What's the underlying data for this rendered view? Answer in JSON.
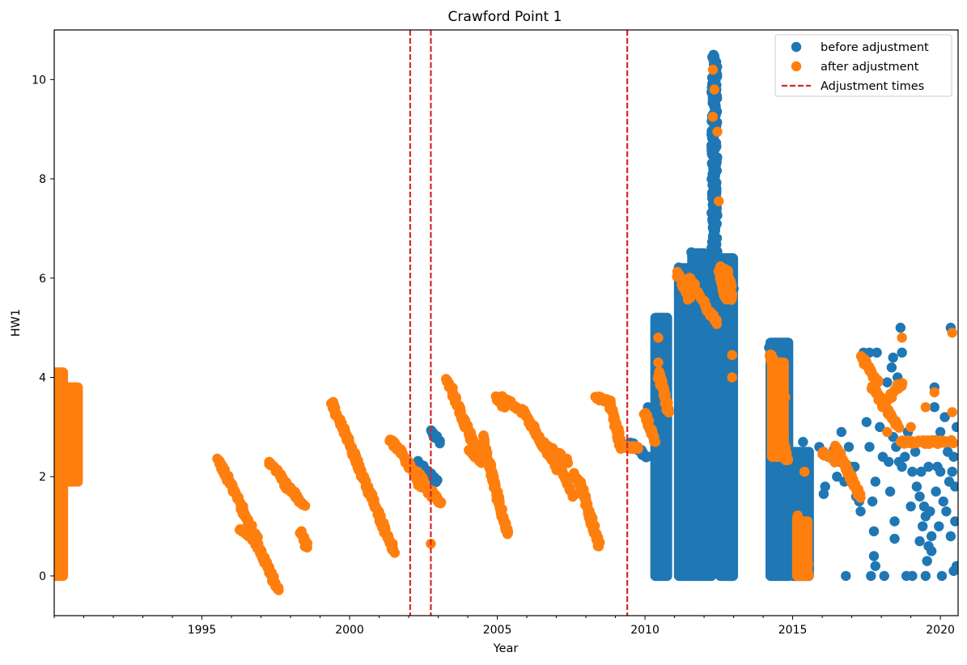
{
  "chart_data": {
    "type": "scatter",
    "title": "Crawford Point 1",
    "xlabel": "Year",
    "ylabel": "HW1",
    "xlim": [
      1990.0,
      2020.6
    ],
    "ylim": [
      -0.8,
      11.0
    ],
    "xticks": [
      1995,
      2000,
      2005,
      2010,
      2015,
      2020
    ],
    "yticks": [
      0,
      2,
      4,
      6,
      8,
      10
    ],
    "grid": false,
    "legend_position": "top-right",
    "colors": {
      "before": "#1f77b4",
      "after": "#ff7f0e",
      "adjustment": "#d62728"
    },
    "legend": [
      "before adjustment",
      "after adjustment",
      "Adjustment times"
    ],
    "adjustment_times": [
      2002.05,
      2002.75,
      2009.4
    ],
    "series": [
      {
        "name": "before adjustment",
        "segments": [
          {
            "x": [
              2002.3,
              2002.95
            ],
            "y": [
              2.3,
              1.9
            ]
          },
          {
            "x": [
              2002.75,
              2003.05
            ],
            "y": [
              2.9,
              2.7
            ]
          },
          {
            "x": [
              2009.5,
              2010.1
            ],
            "y": [
              2.7,
              2.4
            ]
          },
          {
            "x": [
              2011.2,
              2011.55
            ],
            "y": [
              6.2,
              5.5
            ]
          },
          {
            "x": [
              2011.6,
              2011.9
            ],
            "y": [
              6.5,
              6.0
            ]
          },
          {
            "x": [
              2012.1,
              2012.55
            ],
            "y": [
              6.2,
              5.6
            ]
          },
          {
            "x": [
              2012.55,
              2012.95
            ],
            "y": [
              6.3,
              5.8
            ]
          },
          {
            "x": [
              2014.3,
              2014.75
            ],
            "y": [
              4.6,
              3.5
            ]
          }
        ],
        "bars": [
          {
            "x": [
              2010.35,
              2010.75
            ],
            "y": [
              0.0,
              5.2
            ]
          },
          {
            "x": [
              2011.15,
              2011.55
            ],
            "y": [
              0.0,
              6.2
            ]
          },
          {
            "x": [
              2011.6,
              2012.0
            ],
            "y": [
              0.0,
              6.5
            ]
          },
          {
            "x": [
              2012.05,
              2012.25
            ],
            "y": [
              0.0,
              6.4
            ]
          },
          {
            "x": [
              2012.55,
              2012.98
            ],
            "y": [
              0.0,
              6.4
            ]
          },
          {
            "x": [
              2014.25,
              2014.85
            ],
            "y": [
              0.0,
              4.7
            ]
          },
          {
            "x": [
              2015.0,
              2015.55
            ],
            "y": [
              0.0,
              2.5
            ]
          }
        ],
        "spike": {
          "x": 2012.35,
          "x_spread": 0.1,
          "y": [
            6.0,
            10.5
          ]
        },
        "points": [
          [
            2010.1,
            3.4
          ],
          [
            2010.45,
            5.2
          ],
          [
            2010.4,
            4.4
          ],
          [
            2014.2,
            4.6
          ],
          [
            2015.35,
            2.7
          ],
          [
            2015.9,
            2.6
          ],
          [
            2016.05,
            2.5
          ],
          [
            2016.1,
            1.8
          ],
          [
            2016.05,
            1.65
          ],
          [
            2016.2,
            2.4
          ],
          [
            2016.4,
            2.55
          ],
          [
            2016.5,
            2.0
          ],
          [
            2016.6,
            2.3
          ],
          [
            2016.65,
            2.9
          ],
          [
            2016.75,
            1.9
          ],
          [
            2016.8,
            0.0
          ],
          [
            2016.9,
            2.6
          ],
          [
            2017.0,
            2.2
          ],
          [
            2017.1,
            2.2
          ],
          [
            2017.15,
            1.6
          ],
          [
            2017.25,
            1.5
          ],
          [
            2017.3,
            1.3
          ],
          [
            2017.4,
            4.5
          ],
          [
            2017.5,
            3.1
          ],
          [
            2017.6,
            2.6
          ],
          [
            2017.6,
            4.5
          ],
          [
            2017.65,
            0.0
          ],
          [
            2017.7,
            1.5
          ],
          [
            2017.75,
            0.4
          ],
          [
            2017.75,
            0.9
          ],
          [
            2017.8,
            0.2
          ],
          [
            2017.8,
            1.9
          ],
          [
            2017.85,
            4.5
          ],
          [
            2017.95,
            3.0
          ],
          [
            2018.05,
            2.4
          ],
          [
            2018.1,
            0.0
          ],
          [
            2018.2,
            3.9
          ],
          [
            2018.25,
            2.3
          ],
          [
            2018.3,
            1.7
          ],
          [
            2018.35,
            4.2
          ],
          [
            2018.4,
            4.4
          ],
          [
            2018.4,
            2.8
          ],
          [
            2018.45,
            1.1
          ],
          [
            2018.45,
            0.75
          ],
          [
            2018.5,
            2.6
          ],
          [
            2018.55,
            4.0
          ],
          [
            2018.6,
            2.3
          ],
          [
            2018.65,
            5.0
          ],
          [
            2018.7,
            4.5
          ],
          [
            2018.7,
            2.2
          ],
          [
            2018.8,
            2.4
          ],
          [
            2018.85,
            0.0
          ],
          [
            2018.9,
            2.9
          ],
          [
            2019.0,
            1.4
          ],
          [
            2019.05,
            2.1
          ],
          [
            2019.05,
            0.0
          ],
          [
            2019.15,
            2.5
          ],
          [
            2019.2,
            1.8
          ],
          [
            2019.3,
            1.6
          ],
          [
            2019.3,
            0.7
          ],
          [
            2019.35,
            2.1
          ],
          [
            2019.4,
            1.0
          ],
          [
            2019.45,
            1.4
          ],
          [
            2019.5,
            1.2
          ],
          [
            2019.5,
            0.0
          ],
          [
            2019.55,
            0.3
          ],
          [
            2019.6,
            0.6
          ],
          [
            2019.65,
            1.3
          ],
          [
            2019.7,
            0.5
          ],
          [
            2019.7,
            0.8
          ],
          [
            2019.8,
            3.8
          ],
          [
            2019.8,
            3.4
          ],
          [
            2019.85,
            1.7
          ],
          [
            2019.9,
            2.2
          ],
          [
            2019.95,
            1.0
          ],
          [
            2020.0,
            2.9
          ],
          [
            2020.05,
            0.0
          ],
          [
            2020.1,
            1.5
          ],
          [
            2020.15,
            3.2
          ],
          [
            2020.2,
            1.3
          ],
          [
            2020.25,
            2.5
          ],
          [
            2020.3,
            1.9
          ],
          [
            2020.35,
            0.8
          ],
          [
            2020.35,
            5.0
          ],
          [
            2020.4,
            2.1
          ],
          [
            2020.45,
            0.1
          ],
          [
            2020.45,
            2.4
          ],
          [
            2020.5,
            1.8
          ],
          [
            2020.55,
            0.2
          ],
          [
            2020.55,
            3.0
          ],
          [
            2020.5,
            1.1
          ],
          [
            2020.0,
            2.1
          ],
          [
            2019.6,
            2.2
          ]
        ]
      },
      {
        "name": "after adjustment",
        "segments": [
          {
            "x": [
              1995.55,
              1996.85
            ],
            "y": [
              2.35,
              0.75
            ]
          },
          {
            "x": [
              1996.3,
              1996.9
            ],
            "y": [
              0.95,
              0.65
            ]
          },
          {
            "x": [
              1996.85,
              1997.6
            ],
            "y": [
              0.65,
              -0.3
            ]
          },
          {
            "x": [
              1997.3,
              1998.0
            ],
            "y": [
              2.3,
              1.7
            ]
          },
          {
            "x": [
              1997.9,
              1998.45
            ],
            "y": [
              1.85,
              1.4
            ]
          },
          {
            "x": [
              1998.35,
              1998.55
            ],
            "y": [
              0.9,
              0.6
            ]
          },
          {
            "x": [
              1999.4,
              2001.5
            ],
            "y": [
              3.5,
              0.5
            ]
          },
          {
            "x": [
              2001.35,
              2001.75
            ],
            "y": [
              2.75,
              2.5
            ]
          },
          {
            "x": [
              2001.75,
              2002.4
            ],
            "y": [
              2.5,
              1.8
            ]
          },
          {
            "x": [
              2002.3,
              2002.75
            ],
            "y": [
              2.1,
              1.6
            ]
          },
          {
            "x": [
              2002.8,
              2003.1
            ],
            "y": [
              1.7,
              1.45
            ]
          },
          {
            "x": [
              2003.3,
              2004.3
            ],
            "y": [
              3.95,
              2.5
            ]
          },
          {
            "x": [
              2004.0,
              2004.5
            ],
            "y": [
              2.55,
              2.3
            ]
          },
          {
            "x": [
              2004.5,
              2004.7
            ],
            "y": [
              2.8,
              2.3
            ]
          },
          {
            "x": [
              2004.7,
              2005.35
            ],
            "y": [
              2.3,
              0.85
            ]
          },
          {
            "x": [
              2004.95,
              2005.25
            ],
            "y": [
              3.6,
              3.4
            ]
          },
          {
            "x": [
              2005.2,
              2005.9
            ],
            "y": [
              3.6,
              3.3
            ]
          },
          {
            "x": [
              2005.9,
              2007.1
            ],
            "y": [
              3.3,
              2.1
            ]
          },
          {
            "x": [
              2006.7,
              2007.4
            ],
            "y": [
              2.6,
              2.3
            ]
          },
          {
            "x": [
              2007.0,
              2007.6
            ],
            "y": [
              2.4,
              1.6
            ]
          },
          {
            "x": [
              2007.55,
              2007.8
            ],
            "y": [
              2.05,
              1.9
            ]
          },
          {
            "x": [
              2007.8,
              2008.45
            ],
            "y": [
              1.9,
              0.6
            ]
          },
          {
            "x": [
              2008.3,
              2008.8
            ],
            "y": [
              3.6,
              3.5
            ]
          },
          {
            "x": [
              2008.8,
              2009.2
            ],
            "y": [
              3.5,
              2.6
            ]
          },
          {
            "x": [
              2009.1,
              2009.8
            ],
            "y": [
              2.6,
              2.6
            ]
          },
          {
            "x": [
              2010.0,
              2010.3
            ],
            "y": [
              3.3,
              2.7
            ]
          },
          {
            "x": [
              2010.45,
              2010.8
            ],
            "y": [
              4.1,
              3.3
            ]
          },
          {
            "x": [
              2011.1,
              2011.5
            ],
            "y": [
              6.1,
              5.6
            ]
          },
          {
            "x": [
              2011.5,
              2012.4
            ],
            "y": [
              6.0,
              5.1
            ]
          },
          {
            "x": [
              2012.5,
              2012.75
            ],
            "y": [
              6.2,
              5.6
            ]
          },
          {
            "x": [
              2012.75,
              2012.95
            ],
            "y": [
              6.2,
              5.6
            ]
          },
          {
            "x": [
              2014.25,
              2014.8
            ],
            "y": [
              4.5,
              2.3
            ]
          },
          {
            "x": [
              2015.15,
              2015.55
            ],
            "y": [
              1.2,
              0.0
            ]
          },
          {
            "x": [
              2016.0,
              2016.45
            ],
            "y": [
              2.5,
              2.3
            ]
          },
          {
            "x": [
              2016.45,
              2017.3
            ],
            "y": [
              2.6,
              1.6
            ]
          },
          {
            "x": [
              2017.35,
              2017.9
            ],
            "y": [
              4.4,
              3.9
            ]
          },
          {
            "x": [
              2017.7,
              2018.6
            ],
            "y": [
              3.8,
              3.0
            ]
          },
          {
            "x": [
              2018.0,
              2018.7
            ],
            "y": [
              3.4,
              3.9
            ]
          },
          {
            "x": [
              2018.7,
              2019.4
            ],
            "y": [
              2.7,
              2.7
            ]
          },
          {
            "x": [
              2019.4,
              2020.4
            ],
            "y": [
              2.7,
              2.7
            ]
          }
        ],
        "bars": [
          {
            "x": [
              1990.0,
              1990.3
            ],
            "y": [
              0.0,
              4.1
            ]
          },
          {
            "x": [
              1990.25,
              1990.8
            ],
            "y": [
              1.9,
              3.8
            ]
          },
          {
            "x": [
              2014.3,
              2014.7
            ],
            "y": [
              2.4,
              4.3
            ]
          },
          {
            "x": [
              2015.15,
              2015.5
            ],
            "y": [
              0.0,
              1.1
            ]
          }
        ],
        "points": [
          [
            2012.3,
            10.2
          ],
          [
            2012.35,
            9.8
          ],
          [
            2012.3,
            9.25
          ],
          [
            2012.45,
            8.95
          ],
          [
            2012.5,
            7.55
          ],
          [
            2012.95,
            4.45
          ],
          [
            2012.95,
            4.0
          ],
          [
            2010.45,
            4.8
          ],
          [
            2010.45,
            4.3
          ],
          [
            2002.75,
            0.65
          ],
          [
            2014.75,
            3.6
          ],
          [
            2015.4,
            2.1
          ],
          [
            2018.7,
            4.8
          ],
          [
            2019.8,
            3.7
          ],
          [
            2020.4,
            4.9
          ],
          [
            2020.4,
            3.3
          ],
          [
            2018.2,
            2.9
          ],
          [
            2019.0,
            3.0
          ],
          [
            2019.5,
            3.4
          ]
        ]
      }
    ]
  }
}
